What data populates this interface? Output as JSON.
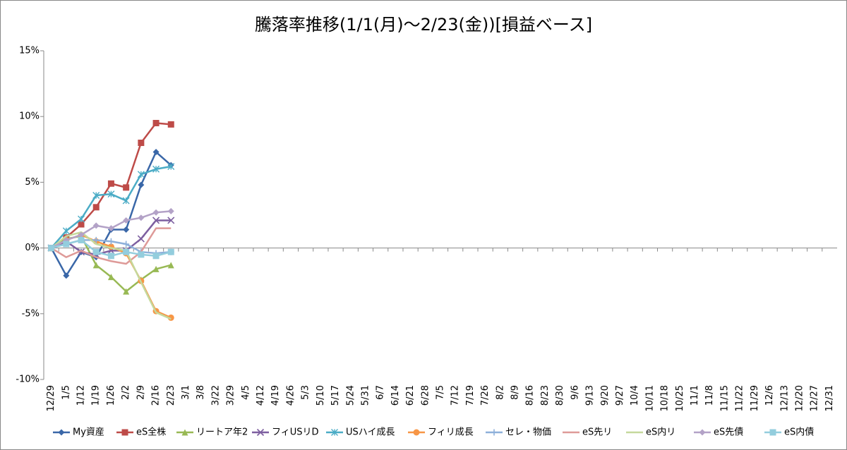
{
  "chart_data": {
    "type": "line",
    "title": "騰落率推移(1/1(月)～2/23(金))[損益ベース]",
    "categories": [
      "12/29",
      "1/5",
      "1/12",
      "1/19",
      "1/26",
      "2/2",
      "2/9",
      "2/16",
      "2/23",
      "3/1",
      "3/8",
      "3/22",
      "3/29",
      "4/5",
      "4/12",
      "4/19",
      "4/26",
      "5/3",
      "5/10",
      "5/17",
      "5/24",
      "5/31",
      "6/7",
      "6/14",
      "6/21",
      "6/28",
      "7/5",
      "7/12",
      "7/19",
      "7/26",
      "8/2",
      "8/9",
      "8/16",
      "8/23",
      "8/30",
      "9/6",
      "9/13",
      "9/20",
      "9/27",
      "10/4",
      "10/11",
      "10/18",
      "10/25",
      "11/1",
      "11/8",
      "11/15",
      "11/22",
      "11/29",
      "12/6",
      "12/13",
      "12/20",
      "12/27",
      "12/31"
    ],
    "ylim": [
      -10,
      15
    ],
    "yticks": [
      {
        "value": -10,
        "label": "-10%"
      },
      {
        "value": -5,
        "label": "-5%"
      },
      {
        "value": 0,
        "label": "0%"
      },
      {
        "value": 5,
        "label": "5%"
      },
      {
        "value": 10,
        "label": "10%"
      },
      {
        "value": 15,
        "label": "15%"
      }
    ],
    "grid": false,
    "legend": "bottom",
    "series": [
      {
        "name": "My資産",
        "color": "#3a67a8",
        "marker": "diamond",
        "values": [
          0,
          -2.1,
          -0.3,
          -0.7,
          1.4,
          1.4,
          4.8,
          7.3,
          6.3,
          null,
          null,
          null,
          null,
          null,
          null,
          null,
          null,
          null,
          null,
          null,
          null,
          null,
          null,
          null,
          null,
          null,
          null,
          null,
          null,
          null,
          null,
          null,
          null,
          null,
          null,
          null,
          null,
          null,
          null,
          null,
          null,
          null,
          null,
          null,
          null,
          null,
          null,
          null,
          null,
          null,
          null,
          null,
          null
        ]
      },
      {
        "name": "eS全株",
        "color": "#be4b48",
        "marker": "square",
        "values": [
          0,
          0.8,
          1.8,
          3.1,
          4.9,
          4.6,
          8.0,
          9.5,
          9.4,
          null,
          null,
          null,
          null,
          null,
          null,
          null,
          null,
          null,
          null,
          null,
          null,
          null,
          null,
          null,
          null,
          null,
          null,
          null,
          null,
          null,
          null,
          null,
          null,
          null,
          null,
          null,
          null,
          null,
          null,
          null,
          null,
          null,
          null,
          null,
          null,
          null,
          null,
          null,
          null,
          null,
          null,
          null,
          null
        ]
      },
      {
        "name": "リートア年2",
        "color": "#98b954",
        "marker": "triangle",
        "values": [
          0,
          0.7,
          0.9,
          -1.3,
          -2.2,
          -3.3,
          -2.4,
          -1.6,
          -1.3,
          null,
          null,
          null,
          null,
          null,
          null,
          null,
          null,
          null,
          null,
          null,
          null,
          null,
          null,
          null,
          null,
          null,
          null,
          null,
          null,
          null,
          null,
          null,
          null,
          null,
          null,
          null,
          null,
          null,
          null,
          null,
          null,
          null,
          null,
          null,
          null,
          null,
          null,
          null,
          null,
          null,
          null,
          null,
          null
        ]
      },
      {
        "name": "フィUSリD",
        "color": "#7d5fa0",
        "marker": "x",
        "values": [
          0,
          0.5,
          -0.3,
          -0.5,
          -0.2,
          -0.2,
          0.7,
          2.1,
          2.1,
          null,
          null,
          null,
          null,
          null,
          null,
          null,
          null,
          null,
          null,
          null,
          null,
          null,
          null,
          null,
          null,
          null,
          null,
          null,
          null,
          null,
          null,
          null,
          null,
          null,
          null,
          null,
          null,
          null,
          null,
          null,
          null,
          null,
          null,
          null,
          null,
          null,
          null,
          null,
          null,
          null,
          null,
          null,
          null
        ]
      },
      {
        "name": "USハイ成長",
        "color": "#4bacc6",
        "marker": "star",
        "values": [
          0,
          1.3,
          2.2,
          4.0,
          4.1,
          3.6,
          5.6,
          6.0,
          6.2,
          null,
          null,
          null,
          null,
          null,
          null,
          null,
          null,
          null,
          null,
          null,
          null,
          null,
          null,
          null,
          null,
          null,
          null,
          null,
          null,
          null,
          null,
          null,
          null,
          null,
          null,
          null,
          null,
          null,
          null,
          null,
          null,
          null,
          null,
          null,
          null,
          null,
          null,
          null,
          null,
          null,
          null,
          null,
          null
        ]
      },
      {
        "name": "フィリ成長",
        "color": "#f79646",
        "marker": "circle",
        "values": [
          0,
          0.6,
          1.0,
          0.5,
          0.1,
          -0.4,
          -2.5,
          -4.8,
          -5.3,
          null,
          null,
          null,
          null,
          null,
          null,
          null,
          null,
          null,
          null,
          null,
          null,
          null,
          null,
          null,
          null,
          null,
          null,
          null,
          null,
          null,
          null,
          null,
          null,
          null,
          null,
          null,
          null,
          null,
          null,
          null,
          null,
          null,
          null,
          null,
          null,
          null,
          null,
          null,
          null,
          null,
          null,
          null,
          null
        ]
      },
      {
        "name": "セレ・物価",
        "color": "#8eb0da",
        "marker": "plus",
        "values": [
          0,
          0.3,
          0.6,
          0.6,
          0.5,
          0.3,
          -0.3,
          -0.4,
          -0.3,
          null,
          null,
          null,
          null,
          null,
          null,
          null,
          null,
          null,
          null,
          null,
          null,
          null,
          null,
          null,
          null,
          null,
          null,
          null,
          null,
          null,
          null,
          null,
          null,
          null,
          null,
          null,
          null,
          null,
          null,
          null,
          null,
          null,
          null,
          null,
          null,
          null,
          null,
          null,
          null,
          null,
          null,
          null,
          null
        ]
      },
      {
        "name": "eS先リ",
        "color": "#de9a98",
        "marker": "none",
        "values": [
          0,
          -0.7,
          -0.2,
          -0.7,
          -1.0,
          -1.2,
          -0.3,
          1.5,
          1.5,
          null,
          null,
          null,
          null,
          null,
          null,
          null,
          null,
          null,
          null,
          null,
          null,
          null,
          null,
          null,
          null,
          null,
          null,
          null,
          null,
          null,
          null,
          null,
          null,
          null,
          null,
          null,
          null,
          null,
          null,
          null,
          null,
          null,
          null,
          null,
          null,
          null,
          null,
          null,
          null,
          null,
          null,
          null,
          null
        ]
      },
      {
        "name": "eS内リ",
        "color": "#c5d99c",
        "marker": "none",
        "values": [
          0,
          0.9,
          1.2,
          0.3,
          0.0,
          -0.2,
          -2.6,
          -4.9,
          -5.4,
          null,
          null,
          null,
          null,
          null,
          null,
          null,
          null,
          null,
          null,
          null,
          null,
          null,
          null,
          null,
          null,
          null,
          null,
          null,
          null,
          null,
          null,
          null,
          null,
          null,
          null,
          null,
          null,
          null,
          null,
          null,
          null,
          null,
          null,
          null,
          null,
          null,
          null,
          null,
          null,
          null,
          null,
          null,
          null
        ]
      },
      {
        "name": "eS先債",
        "color": "#b3a2c7",
        "marker": "diamond",
        "values": [
          0,
          0.6,
          1.0,
          1.7,
          1.5,
          2.1,
          2.3,
          2.7,
          2.8,
          null,
          null,
          null,
          null,
          null,
          null,
          null,
          null,
          null,
          null,
          null,
          null,
          null,
          null,
          null,
          null,
          null,
          null,
          null,
          null,
          null,
          null,
          null,
          null,
          null,
          null,
          null,
          null,
          null,
          null,
          null,
          null,
          null,
          null,
          null,
          null,
          null,
          null,
          null,
          null,
          null,
          null,
          null,
          null
        ]
      },
      {
        "name": "eS内債",
        "color": "#93cddd",
        "marker": "square",
        "values": [
          0,
          0.3,
          0.6,
          -0.3,
          -0.6,
          -0.3,
          -0.5,
          -0.6,
          -0.3,
          null,
          null,
          null,
          null,
          null,
          null,
          null,
          null,
          null,
          null,
          null,
          null,
          null,
          null,
          null,
          null,
          null,
          null,
          null,
          null,
          null,
          null,
          null,
          null,
          null,
          null,
          null,
          null,
          null,
          null,
          null,
          null,
          null,
          null,
          null,
          null,
          null,
          null,
          null,
          null,
          null,
          null,
          null,
          null
        ]
      }
    ]
  }
}
